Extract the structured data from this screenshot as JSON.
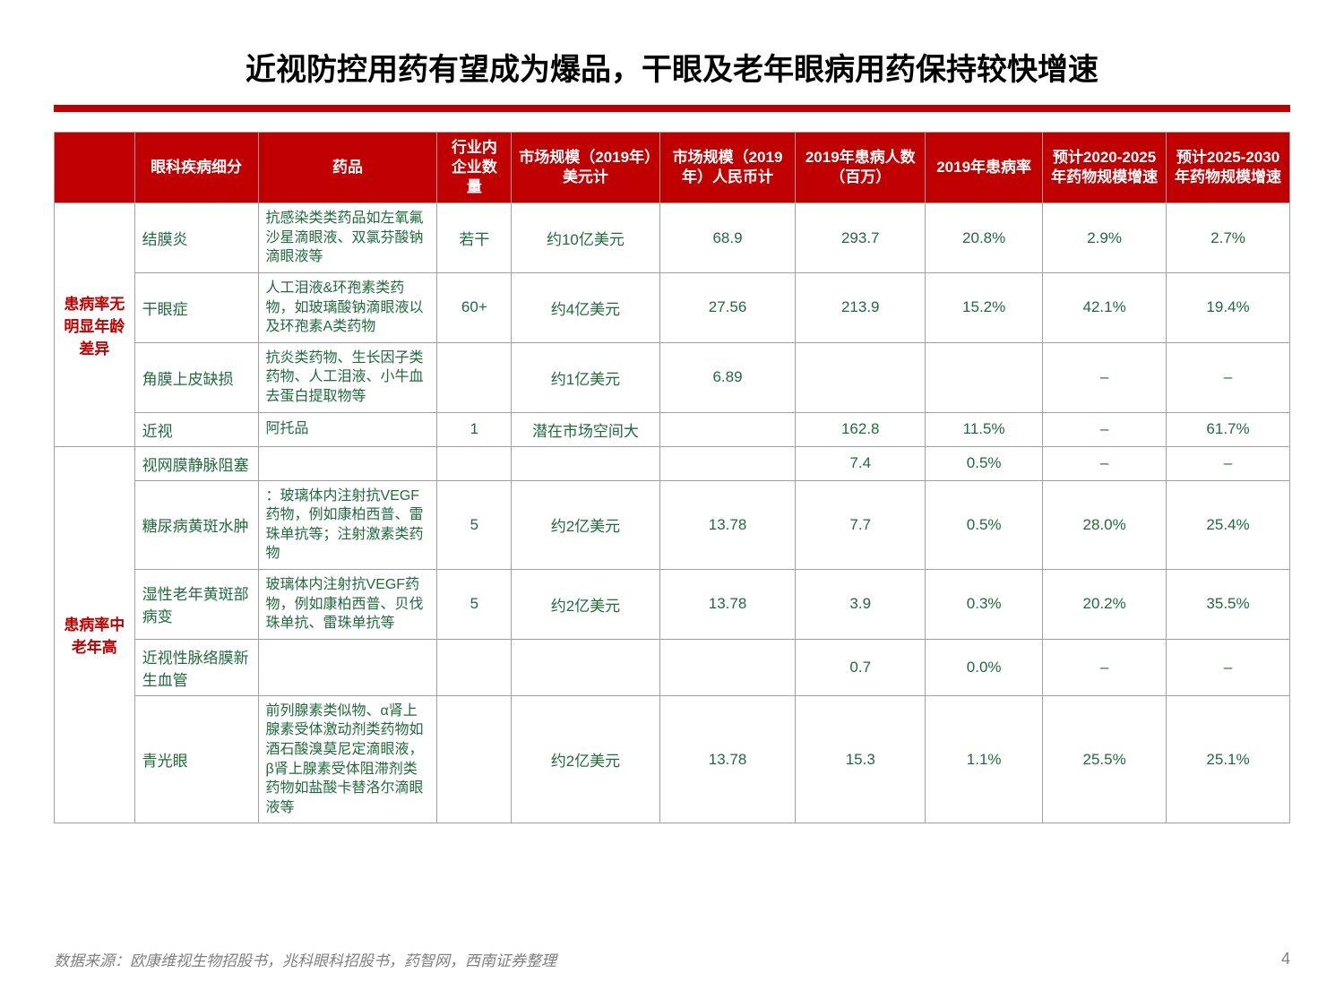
{
  "title": "近视防控用药有望成为爆品，干眼及老年眼病用药保持较快增速",
  "headers": {
    "h0": "",
    "h1": "眼科疾病细分",
    "h2": "药品",
    "h3": "行业内企业数量",
    "h4": "市场规模（2019年）美元计",
    "h5": "市场规模（2019年）人民币计",
    "h6": "2019年患病人数（百万）",
    "h7": "2019年患病率",
    "h8": "预计2020-2025年药物规模增速",
    "h9": "预计2025-2030年药物规模增速"
  },
  "groups": {
    "g1_label": "患病率无明显年龄差异",
    "g2_label": "患病率中老年高"
  },
  "rows": {
    "r1": {
      "disease": "结膜炎",
      "drug": "抗感染类类药品如左氧氟沙星滴眼液、双氯芬酸钠滴眼液等",
      "count": "若干",
      "usd": "约10亿美元",
      "rmb": "68.9",
      "patients": "293.7",
      "rate": "20.8%",
      "g2025": "2.9%",
      "g2030": "2.7%"
    },
    "r2": {
      "disease": "干眼症",
      "drug": "人工泪液&环孢素类药物，如玻璃酸钠滴眼液以及环孢素A类药物",
      "count": "60+",
      "usd": "约4亿美元",
      "rmb": "27.56",
      "patients": "213.9",
      "rate": "15.2%",
      "g2025": "42.1%",
      "g2030": "19.4%"
    },
    "r3": {
      "disease": "角膜上皮缺损",
      "drug": "抗炎类药物、生长因子类药物、人工泪液、小牛血去蛋白提取物等",
      "count": "",
      "usd": "约1亿美元",
      "rmb": "6.89",
      "patients": "",
      "rate": "",
      "g2025": "–",
      "g2030": "–"
    },
    "r4": {
      "disease": "近视",
      "drug": "阿托品",
      "count": "1",
      "usd": "潜在市场空间大",
      "rmb": "",
      "patients": "162.8",
      "rate": "11.5%",
      "g2025": "–",
      "g2030": "61.7%"
    },
    "r5": {
      "disease": "视网膜静脉阻塞",
      "drug": "",
      "count": "",
      "usd": "",
      "rmb": "",
      "patients": "7.4",
      "rate": "0.5%",
      "g2025": "–",
      "g2030": "–"
    },
    "r6": {
      "disease": "糖尿病黄斑水肿",
      "drug": "：玻璃体内注射抗VEGF药物，例如康柏西普、雷珠单抗等；注射激素类药物",
      "count": "5",
      "usd": "约2亿美元",
      "rmb": "13.78",
      "patients": "7.7",
      "rate": "0.5%",
      "g2025": "28.0%",
      "g2030": "25.4%"
    },
    "r7": {
      "disease": "湿性老年黄斑部病变",
      "drug": "玻璃体内注射抗VEGF药物，例如康柏西普、贝伐珠单抗、雷珠单抗等",
      "count": "5",
      "usd": "约2亿美元",
      "rmb": "13.78",
      "patients": "3.9",
      "rate": "0.3%",
      "g2025": "20.2%",
      "g2030": "35.5%"
    },
    "r8": {
      "disease": "近视性脉络膜新生血管",
      "drug": "",
      "count": "",
      "usd": "",
      "rmb": "",
      "patients": "0.7",
      "rate": "0.0%",
      "g2025": "–",
      "g2030": "–"
    },
    "r9": {
      "disease": "青光眼",
      "drug": "前列腺素类似物、α肾上腺素受体激动剂类药物如酒石酸溴莫尼定滴眼液，β肾上腺素受体阻滞剂类药物如盐酸卡替洛尔滴眼液等",
      "count": "",
      "usd": "约2亿美元",
      "rmb": "13.78",
      "patients": "15.3",
      "rate": "1.1%",
      "g2025": "25.5%",
      "g2030": "25.1%"
    }
  },
  "source": "数据来源：欧康维视生物招股书，兆科眼科招股书，药智网，西南证券整理",
  "page": "4",
  "styling": {
    "header_bg": "#c00000",
    "header_text_color": "#ffffff",
    "cell_text_color": "#1f6b3c",
    "group_label_color": "#c00000",
    "border_color": "#a0a0a0",
    "title_fontsize": 34,
    "cell_fontsize": 17
  }
}
